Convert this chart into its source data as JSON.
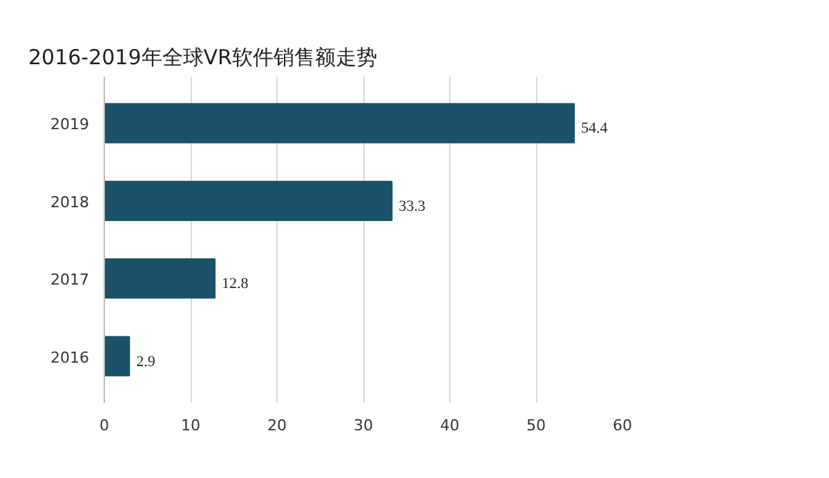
{
  "chart_data": {
    "type": "bar",
    "orientation": "horizontal",
    "title": "2016-2019年全球VR软件销售额走势",
    "categories": [
      "2019",
      "2018",
      "2017",
      "2016"
    ],
    "values": [
      54.4,
      33.3,
      12.8,
      2.9
    ],
    "color": "#1b5269",
    "data_labels": true,
    "xlim": [
      0,
      60
    ],
    "xticks": [
      0,
      10,
      20,
      30,
      40,
      50,
      60
    ],
    "grid": "x"
  }
}
